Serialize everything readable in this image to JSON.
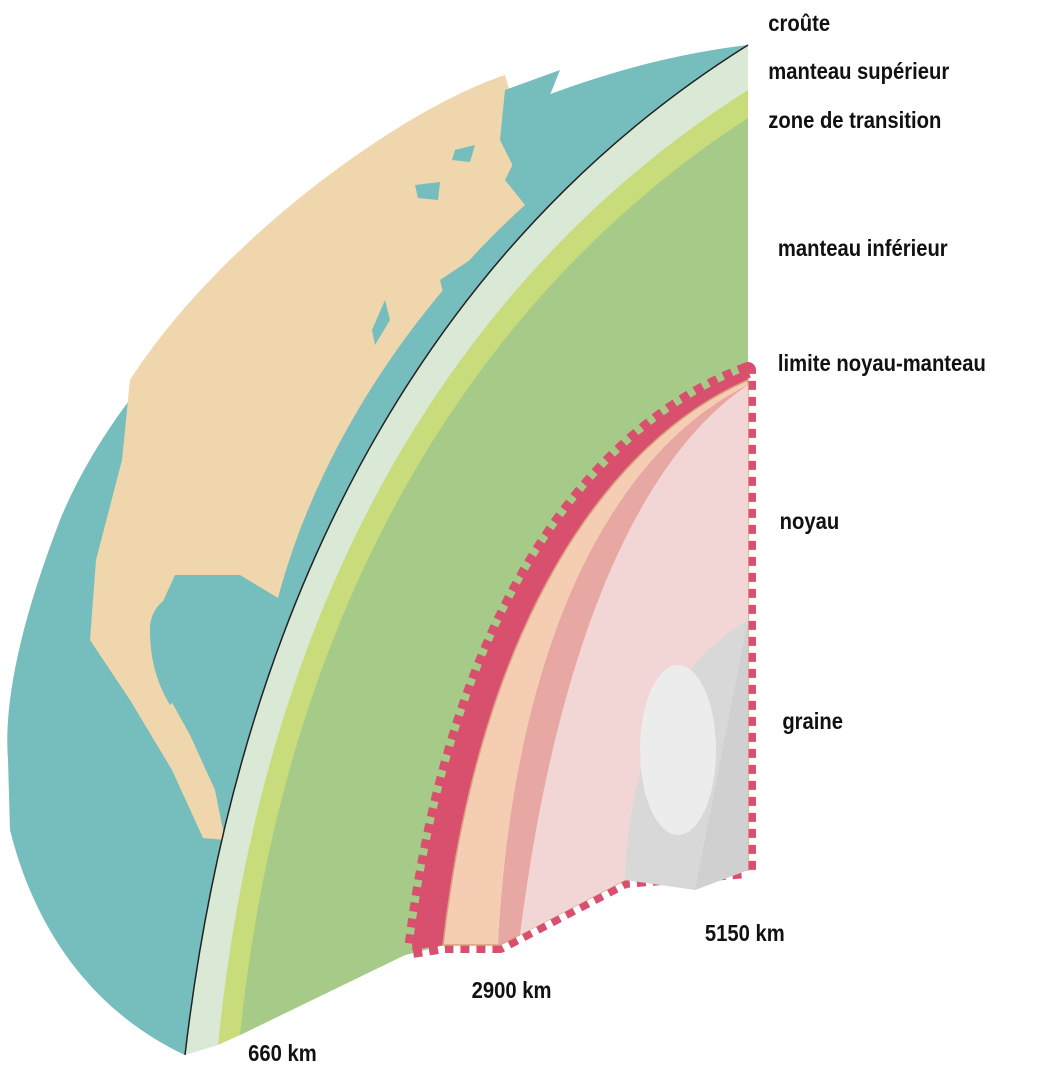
{
  "layers": [
    {
      "label": "croûte"
    },
    {
      "label": "manteau supérieur"
    },
    {
      "label": "zone de transition"
    },
    {
      "label": "manteau inférieur"
    },
    {
      "label": "limite noyau-manteau"
    },
    {
      "label": "noyau"
    },
    {
      "label": "graine"
    }
  ],
  "depths": [
    "660 km",
    "2900 km",
    "5150 km"
  ]
}
